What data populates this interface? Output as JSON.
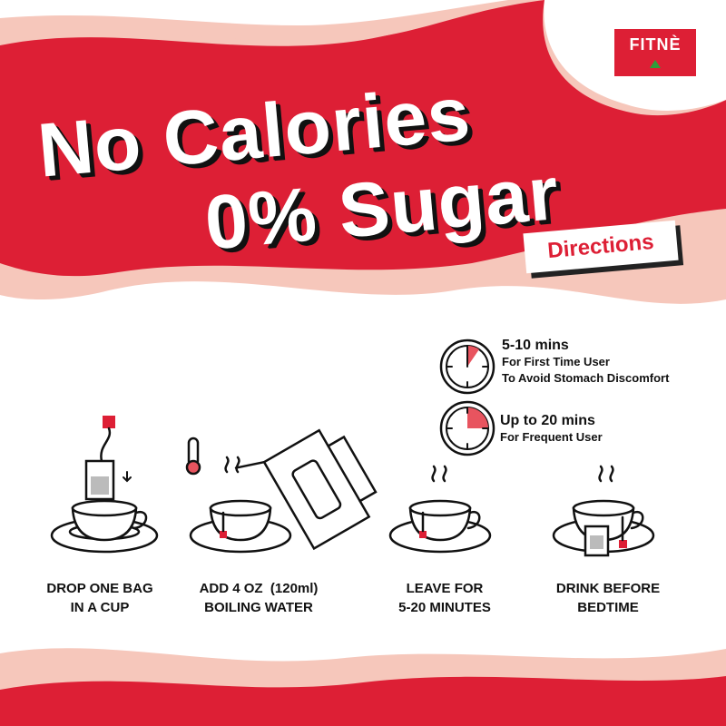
{
  "brand": {
    "logo_text": "FITNÈ",
    "accent": "#dd1f35",
    "pink": "#f6c7bb"
  },
  "headline": {
    "line1": "No Calories",
    "line2": "0% Sugar"
  },
  "directions_label": "Directions",
  "timers": [
    {
      "title": "5-10 mins",
      "lines": [
        "For First Time User",
        "To Avoid Stomach Discomfort"
      ],
      "fill_fraction": 0.1,
      "icon": "timer-icon"
    },
    {
      "title": "Up to 20 mins",
      "lines": [
        "For Frequent User"
      ],
      "fill_fraction": 0.25,
      "icon": "timer-icon"
    }
  ],
  "steps": [
    {
      "lines": [
        "DROP ONE BAG",
        "IN A CUP"
      ],
      "icon": "teabag-drop-icon"
    },
    {
      "lines": [
        "ADD 4 OZ  (120ml)",
        "BOILING WATER"
      ],
      "icon": "kettle-pour-icon"
    },
    {
      "lines": [
        "LEAVE FOR",
        "5-20 MINUTES"
      ],
      "icon": "steeping-cup-icon"
    },
    {
      "lines": [
        "DRINK BEFORE",
        "BEDTIME"
      ],
      "icon": "tea-cup-icon"
    }
  ]
}
